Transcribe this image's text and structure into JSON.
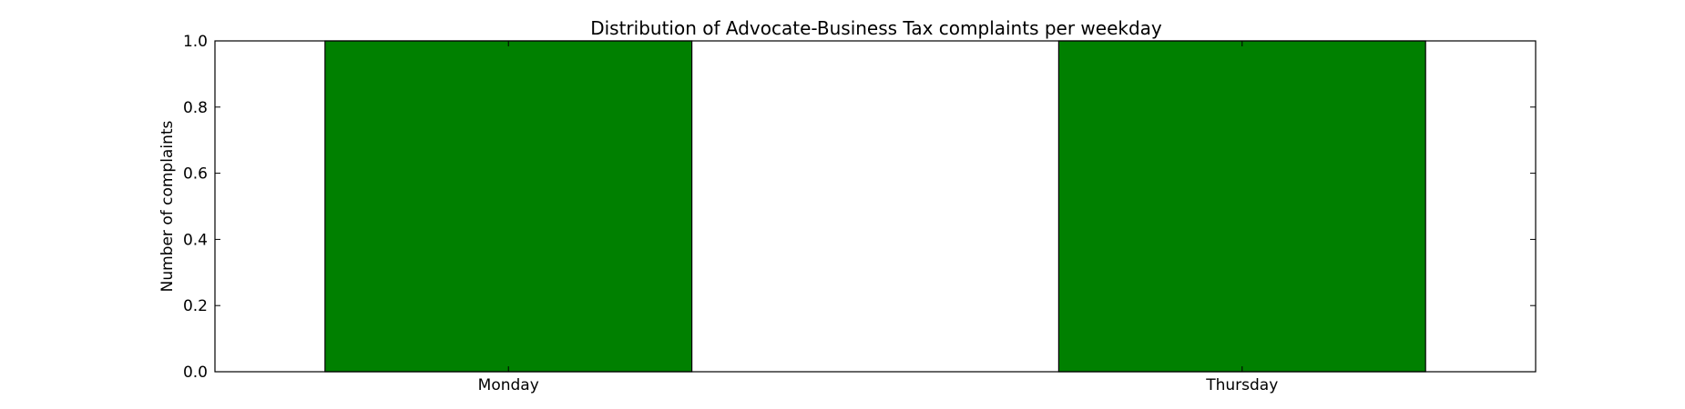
{
  "chart_data": {
    "type": "bar",
    "title": "Distribution of  Advocate-Business Tax complaints per weekday",
    "xlabel": "",
    "ylabel": "Number of complaints",
    "categories": [
      "Monday",
      "Thursday"
    ],
    "values": [
      1.0,
      1.0
    ],
    "ylim": [
      0,
      1.0
    ],
    "yticks": [
      "0.0",
      "0.2",
      "0.4",
      "0.6",
      "0.8",
      "1.0"
    ],
    "grid": false,
    "legend": "none",
    "colors": {
      "bar_fill": "#008000",
      "bar_edge": "#000000",
      "axes": "#000000",
      "background": "#ffffff"
    }
  }
}
